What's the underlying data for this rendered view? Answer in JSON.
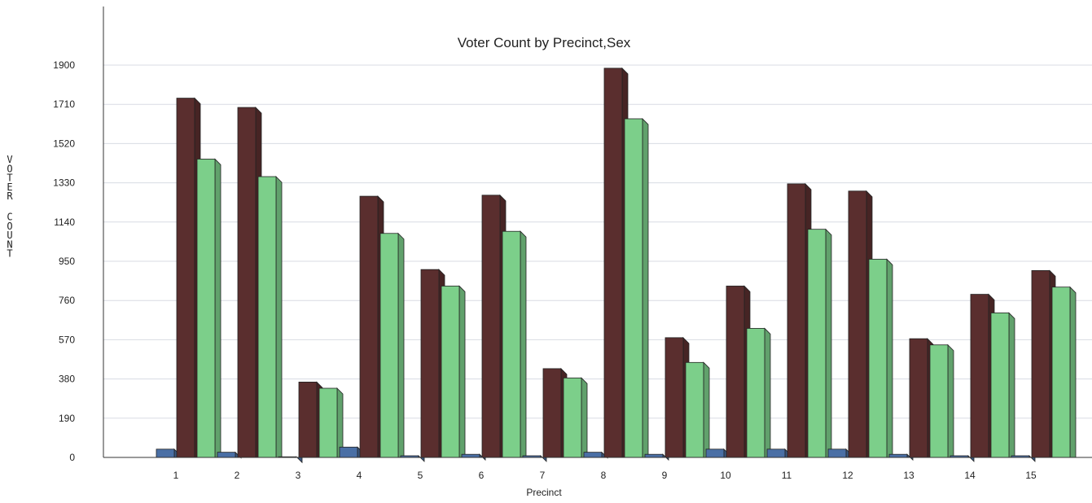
{
  "chart_data": {
    "type": "bar",
    "title": "Voter Count by Precinct,Sex",
    "xlabel": "Precinct",
    "ylabel": "VOTER COUNT",
    "categories": [
      "1",
      "2",
      "3",
      "4",
      "5",
      "6",
      "7",
      "8",
      "9",
      "10",
      "11",
      "12",
      "13",
      "14",
      "15"
    ],
    "yticks": [
      0,
      190,
      380,
      570,
      760,
      950,
      1140,
      1330,
      1520,
      1710,
      1900
    ],
    "ylim": [
      0,
      1900
    ],
    "grid": true,
    "legend": "none",
    "series": [
      {
        "color": "#4a6fa5",
        "values": [
          40,
          25,
          3,
          50,
          8,
          15,
          8,
          25,
          15,
          40,
          40,
          40,
          15,
          8,
          8
        ]
      },
      {
        "color": "#5a2e2e",
        "values": [
          1740,
          1695,
          365,
          1265,
          910,
          1270,
          430,
          1885,
          580,
          830,
          1325,
          1290,
          575,
          790,
          905
        ]
      },
      {
        "color": "#7ccf8a",
        "values": [
          1445,
          1360,
          335,
          1085,
          830,
          1095,
          385,
          1640,
          460,
          625,
          1105,
          960,
          545,
          700,
          825
        ]
      }
    ]
  }
}
